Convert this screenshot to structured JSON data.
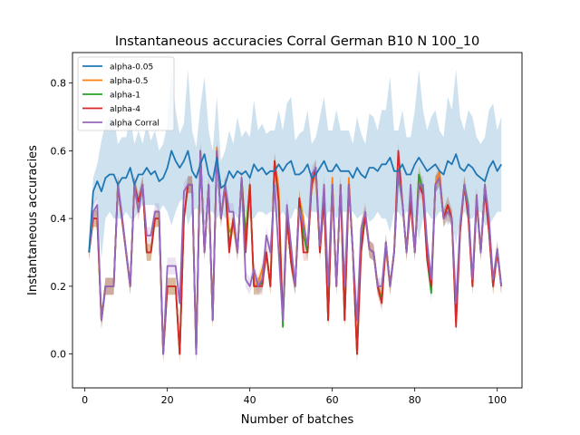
{
  "chart_data": {
    "type": "line",
    "title": "Instantaneous accuracies Corral German B10 N 100_10",
    "xlabel": "Number of batches",
    "ylabel": "Instantaneous accuracies",
    "xlim": [
      -3,
      106
    ],
    "ylim": [
      -0.1,
      0.89
    ],
    "xticks": [
      0,
      20,
      40,
      60,
      80,
      100
    ],
    "yticks": [
      0.0,
      0.2,
      0.4,
      0.6,
      0.8
    ],
    "xtick_labels": [
      "0",
      "20",
      "40",
      "60",
      "80",
      "100"
    ],
    "ytick_labels": [
      "0.0",
      "0.2",
      "0.4",
      "0.6",
      "0.8"
    ],
    "legend_position": "top-left",
    "series": [
      {
        "name": "alpha-0.05",
        "color": "#1f77b4",
        "x_start": 1,
        "values": [
          0.3,
          0.48,
          0.51,
          0.48,
          0.52,
          0.53,
          0.53,
          0.5,
          0.52,
          0.52,
          0.55,
          0.5,
          0.53,
          0.53,
          0.55,
          0.53,
          0.54,
          0.51,
          0.52,
          0.55,
          0.6,
          0.57,
          0.55,
          0.57,
          0.6,
          0.54,
          0.52,
          0.56,
          0.59,
          0.53,
          0.51,
          0.58,
          0.49,
          0.5,
          0.54,
          0.52,
          0.54,
          0.53,
          0.54,
          0.52,
          0.56,
          0.54,
          0.55,
          0.53,
          0.54,
          0.54,
          0.56,
          0.54,
          0.56,
          0.57,
          0.53,
          0.53,
          0.54,
          0.56,
          0.52,
          0.53,
          0.55,
          0.57,
          0.54,
          0.54,
          0.56,
          0.54,
          0.54,
          0.54,
          0.52,
          0.55,
          0.53,
          0.52,
          0.55,
          0.55,
          0.54,
          0.56,
          0.56,
          0.58,
          0.54,
          0.54,
          0.56,
          0.53,
          0.53,
          0.56,
          0.58,
          0.56,
          0.54,
          0.55,
          0.56,
          0.54,
          0.53,
          0.57,
          0.56,
          0.59,
          0.55,
          0.54,
          0.56,
          0.55,
          0.53,
          0.52,
          0.51,
          0.55,
          0.57,
          0.54,
          0.56
        ]
      },
      {
        "name": "alpha-0.5",
        "color": "#ff7f0e",
        "x_start": 1,
        "values": [
          0.3,
          0.4,
          0.4,
          0.1,
          0.2,
          0.2,
          0.2,
          0.5,
          0.4,
          0.3,
          0.2,
          0.5,
          0.42,
          0.5,
          0.3,
          0.3,
          0.4,
          0.4,
          0.0,
          0.2,
          0.2,
          0.2,
          0.0,
          0.4,
          0.5,
          0.5,
          0.0,
          0.6,
          0.3,
          0.5,
          0.1,
          0.61,
          0.4,
          0.5,
          0.36,
          0.38,
          0.3,
          0.52,
          0.35,
          0.5,
          0.2,
          0.21,
          0.25,
          0.3,
          0.2,
          0.57,
          0.49,
          0.1,
          0.4,
          0.27,
          0.2,
          0.46,
          0.4,
          0.3,
          0.5,
          0.53,
          0.3,
          0.5,
          0.1,
          0.52,
          0.2,
          0.5,
          0.1,
          0.52,
          0.3,
          0.0,
          0.37,
          0.42,
          0.31,
          0.3,
          0.2,
          0.17,
          0.31,
          0.2,
          0.3,
          0.54,
          0.45,
          0.3,
          0.48,
          0.3,
          0.53,
          0.48,
          0.31,
          0.2,
          0.5,
          0.54,
          0.4,
          0.42,
          0.4,
          0.1,
          0.38,
          0.5,
          0.41,
          0.2,
          0.47,
          0.3,
          0.5,
          0.4,
          0.2,
          0.3,
          0.2
        ]
      },
      {
        "name": "alpha-1",
        "color": "#2ca02c",
        "x_start": 1,
        "values": [
          0.3,
          0.4,
          0.4,
          0.1,
          0.2,
          0.2,
          0.2,
          0.5,
          0.4,
          0.3,
          0.2,
          0.5,
          0.45,
          0.5,
          0.3,
          0.3,
          0.4,
          0.4,
          0.0,
          0.2,
          0.2,
          0.2,
          0.0,
          0.4,
          0.5,
          0.5,
          0.0,
          0.6,
          0.3,
          0.5,
          0.1,
          0.6,
          0.4,
          0.5,
          0.32,
          0.4,
          0.3,
          0.52,
          0.35,
          0.5,
          0.2,
          0.2,
          0.21,
          0.3,
          0.2,
          0.57,
          0.45,
          0.08,
          0.4,
          0.27,
          0.2,
          0.46,
          0.35,
          0.3,
          0.5,
          0.55,
          0.3,
          0.46,
          0.1,
          0.5,
          0.2,
          0.5,
          0.1,
          0.5,
          0.3,
          0.0,
          0.33,
          0.41,
          0.31,
          0.3,
          0.2,
          0.16,
          0.33,
          0.2,
          0.3,
          0.53,
          0.45,
          0.3,
          0.45,
          0.3,
          0.53,
          0.48,
          0.28,
          0.18,
          0.5,
          0.52,
          0.4,
          0.44,
          0.4,
          0.1,
          0.36,
          0.5,
          0.44,
          0.2,
          0.45,
          0.3,
          0.5,
          0.36,
          0.2,
          0.31,
          0.2
        ]
      },
      {
        "name": "alpha-4",
        "color": "#d62728",
        "x_start": 1,
        "values": [
          0.3,
          0.4,
          0.4,
          0.1,
          0.2,
          0.2,
          0.2,
          0.5,
          0.4,
          0.3,
          0.2,
          0.5,
          0.45,
          0.5,
          0.3,
          0.3,
          0.4,
          0.4,
          0.0,
          0.2,
          0.2,
          0.2,
          0.0,
          0.4,
          0.5,
          0.5,
          0.0,
          0.6,
          0.3,
          0.5,
          0.1,
          0.6,
          0.4,
          0.5,
          0.3,
          0.4,
          0.3,
          0.52,
          0.3,
          0.5,
          0.2,
          0.2,
          0.2,
          0.3,
          0.2,
          0.57,
          0.45,
          0.1,
          0.4,
          0.27,
          0.2,
          0.46,
          0.3,
          0.3,
          0.5,
          0.55,
          0.3,
          0.46,
          0.1,
          0.5,
          0.2,
          0.5,
          0.1,
          0.5,
          0.3,
          0.0,
          0.3,
          0.41,
          0.31,
          0.3,
          0.2,
          0.15,
          0.33,
          0.2,
          0.3,
          0.6,
          0.45,
          0.3,
          0.45,
          0.3,
          0.5,
          0.47,
          0.28,
          0.2,
          0.5,
          0.52,
          0.4,
          0.44,
          0.4,
          0.08,
          0.36,
          0.5,
          0.4,
          0.2,
          0.45,
          0.3,
          0.48,
          0.36,
          0.2,
          0.3,
          0.2
        ]
      },
      {
        "name": "alpha Corral",
        "color": "#9467bd",
        "x_start": 1,
        "values": [
          0.3,
          0.42,
          0.44,
          0.1,
          0.2,
          0.2,
          0.2,
          0.5,
          0.41,
          0.3,
          0.2,
          0.5,
          0.42,
          0.5,
          0.35,
          0.35,
          0.42,
          0.42,
          0.0,
          0.26,
          0.26,
          0.26,
          0.15,
          0.48,
          0.5,
          0.5,
          0.0,
          0.6,
          0.3,
          0.5,
          0.1,
          0.6,
          0.4,
          0.5,
          0.42,
          0.42,
          0.3,
          0.52,
          0.22,
          0.2,
          0.25,
          0.2,
          0.22,
          0.35,
          0.3,
          0.5,
          0.3,
          0.1,
          0.44,
          0.32,
          0.2,
          0.43,
          0.38,
          0.32,
          0.53,
          0.55,
          0.32,
          0.5,
          0.2,
          0.5,
          0.2,
          0.5,
          0.2,
          0.5,
          0.3,
          0.1,
          0.37,
          0.42,
          0.31,
          0.3,
          0.2,
          0.2,
          0.33,
          0.2,
          0.3,
          0.54,
          0.45,
          0.3,
          0.5,
          0.3,
          0.5,
          0.5,
          0.33,
          0.22,
          0.5,
          0.52,
          0.4,
          0.42,
          0.4,
          0.15,
          0.38,
          0.5,
          0.43,
          0.22,
          0.47,
          0.3,
          0.5,
          0.4,
          0.22,
          0.31,
          0.2
        ]
      }
    ],
    "confidence_band": {
      "series": "alpha-0.05",
      "upper": [
        0.3,
        0.52,
        0.56,
        0.63,
        0.68,
        0.7,
        0.7,
        0.62,
        0.64,
        0.64,
        0.7,
        0.62,
        0.66,
        0.62,
        0.68,
        0.63,
        0.66,
        0.6,
        0.62,
        0.68,
        0.84,
        0.72,
        0.65,
        0.68,
        0.84,
        0.66,
        0.61,
        0.73,
        0.82,
        0.66,
        0.6,
        0.76,
        0.57,
        0.6,
        0.66,
        0.62,
        0.7,
        0.64,
        0.66,
        0.64,
        0.75,
        0.66,
        0.68,
        0.65,
        0.66,
        0.66,
        0.72,
        0.66,
        0.74,
        0.76,
        0.63,
        0.65,
        0.66,
        0.72,
        0.62,
        0.64,
        0.7,
        0.76,
        0.66,
        0.66,
        0.72,
        0.66,
        0.66,
        0.66,
        0.62,
        0.7,
        0.65,
        0.62,
        0.71,
        0.7,
        0.66,
        0.72,
        0.72,
        0.82,
        0.66,
        0.66,
        0.72,
        0.64,
        0.64,
        0.72,
        0.84,
        0.72,
        0.66,
        0.7,
        0.72,
        0.66,
        0.64,
        0.76,
        0.72,
        0.84,
        0.7,
        0.66,
        0.72,
        0.7,
        0.64,
        0.62,
        0.64,
        0.72,
        0.74,
        0.66,
        0.7
      ],
      "lower": [
        0.3,
        0.44,
        0.46,
        0.28,
        0.4,
        0.42,
        0.4,
        0.4,
        0.4,
        0.42,
        0.4,
        0.4,
        0.42,
        0.44,
        0.44,
        0.44,
        0.44,
        0.42,
        0.44,
        0.42,
        0.38,
        0.42,
        0.45,
        0.46,
        0.38,
        0.42,
        0.43,
        0.42,
        0.38,
        0.42,
        0.42,
        0.4,
        0.42,
        0.4,
        0.42,
        0.42,
        0.4,
        0.42,
        0.42,
        0.4,
        0.4,
        0.42,
        0.42,
        0.41,
        0.42,
        0.42,
        0.4,
        0.42,
        0.4,
        0.4,
        0.43,
        0.42,
        0.42,
        0.4,
        0.42,
        0.42,
        0.4,
        0.38,
        0.42,
        0.42,
        0.4,
        0.42,
        0.42,
        0.42,
        0.42,
        0.4,
        0.41,
        0.42,
        0.39,
        0.4,
        0.42,
        0.4,
        0.4,
        0.36,
        0.42,
        0.42,
        0.4,
        0.42,
        0.42,
        0.4,
        0.34,
        0.4,
        0.42,
        0.4,
        0.4,
        0.42,
        0.42,
        0.38,
        0.4,
        0.32,
        0.4,
        0.42,
        0.4,
        0.4,
        0.42,
        0.42,
        0.38,
        0.38,
        0.4,
        0.42,
        0.42
      ]
    }
  }
}
